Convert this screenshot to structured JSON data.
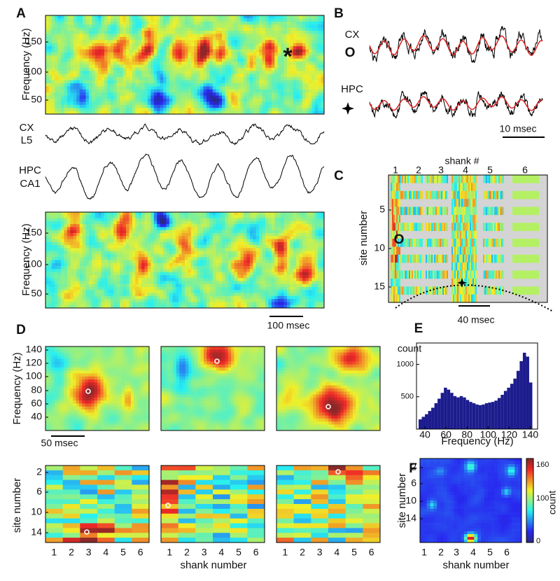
{
  "chart_data": {
    "type": "histogram",
    "xlabel": "Frequency (Hz)",
    "ylabel": "count",
    "bins": [
      34,
      37,
      40,
      43,
      46,
      49,
      52,
      55,
      58,
      61,
      64,
      67,
      70,
      73,
      76,
      79,
      82,
      85,
      88,
      91,
      94,
      97,
      100,
      103,
      106,
      109,
      112,
      115,
      118,
      121,
      124,
      127,
      130,
      133,
      136,
      139,
      142
    ],
    "values": [
      150,
      190,
      230,
      280,
      330,
      400,
      470,
      560,
      640,
      610,
      560,
      510,
      490,
      510,
      490,
      450,
      420,
      400,
      380,
      370,
      380,
      400,
      410,
      420,
      440,
      480,
      530,
      590,
      640,
      700,
      780,
      900,
      1050,
      1180,
      1120,
      720
    ],
    "color": "#1c1c8e",
    "xlim": [
      32,
      147
    ],
    "ylim": [
      0,
      1330
    ],
    "xticks": [
      40,
      60,
      80,
      100,
      120,
      140
    ],
    "yticks": [
      500,
      1000
    ]
  },
  "panels": {
    "A": {
      "label": "A",
      "top_ylabel": "Frequency (Hz)",
      "top_yticks": [
        "150",
        "100",
        "50"
      ],
      "asterisk": "*",
      "cx_label": [
        "CX",
        "L5"
      ],
      "hpc_label": [
        "HPC",
        "CA1"
      ],
      "bottom_ylabel": "Frequency (Hz)",
      "bottom_yticks": [
        "150",
        "100",
        "50"
      ],
      "scale_bar": "100 msec"
    },
    "B": {
      "label": "B",
      "cx": "CX",
      "cx_marker": "O",
      "hpc": "HPC",
      "scale_bar": "10 msec"
    },
    "C": {
      "label": "C",
      "title": "shank #",
      "shanks": [
        "1",
        "2",
        "3",
        "4",
        "5",
        "6"
      ],
      "ylabel": "site number",
      "yticks": [
        "5",
        "10",
        "15"
      ],
      "marker": "O",
      "scale_bar": "40 msec"
    },
    "D": {
      "label": "D",
      "top_ylabel": "Frequency (Hz)",
      "top_yticks": [
        "140",
        "120",
        "100",
        "80",
        "60",
        "40"
      ],
      "scale_bar": "50 msec",
      "bottom_ylabel": "site  number",
      "bottom_yticks": [
        "2",
        "6",
        "10",
        "14"
      ],
      "xticks": [
        "1",
        "2",
        "3",
        "4",
        "5",
        "6"
      ],
      "xlabel": "shank number"
    },
    "E": {
      "label": "E"
    },
    "F": {
      "label": "F",
      "ylabel": "site  number",
      "yticks": [
        "2",
        "6",
        "10",
        "14"
      ],
      "xticks": [
        "1",
        "2",
        "3",
        "4",
        "5",
        "6"
      ],
      "xlabel": "shank number",
      "colorbar_ticks": [
        "160",
        "100",
        "0"
      ],
      "colorbar_label": "count"
    }
  }
}
